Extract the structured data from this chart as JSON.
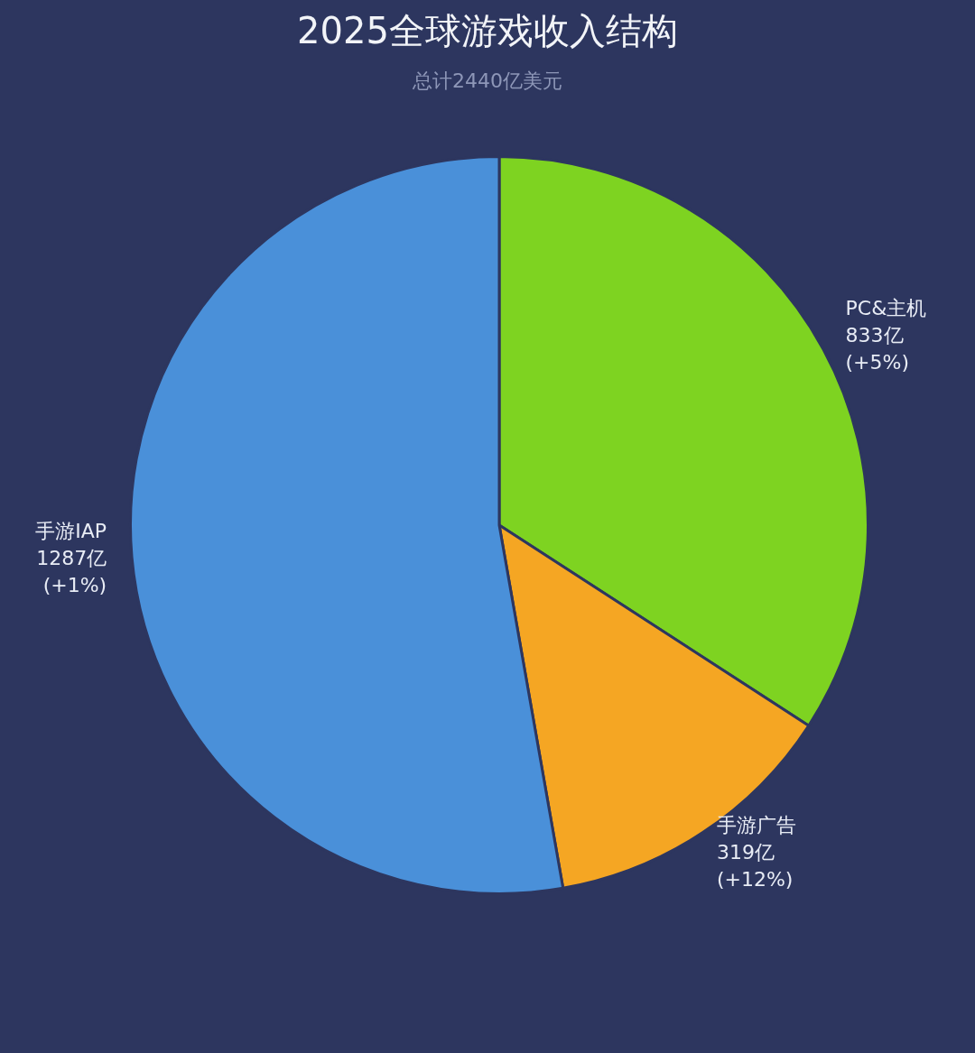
{
  "chart_data": {
    "type": "pie",
    "title": "2025全球游戏收入结构",
    "subtitle": "总计2440亿美元",
    "categories": [
      "PC&主机",
      "手游广告",
      "手游IAP"
    ],
    "values": [
      833,
      319,
      1287
    ],
    "colors": [
      "#7ed321",
      "#f5a623",
      "#4a90d9"
    ],
    "value_labels": [
      "833亿",
      "319亿",
      "1287亿"
    ],
    "annotations": [
      {
        "text": "(+5%)",
        "x": "PC&主机"
      },
      {
        "text": "(+12%)",
        "x": "手游广告"
      },
      {
        "text": "(+1%)",
        "x": "手游IAP"
      }
    ],
    "legend": false
  }
}
